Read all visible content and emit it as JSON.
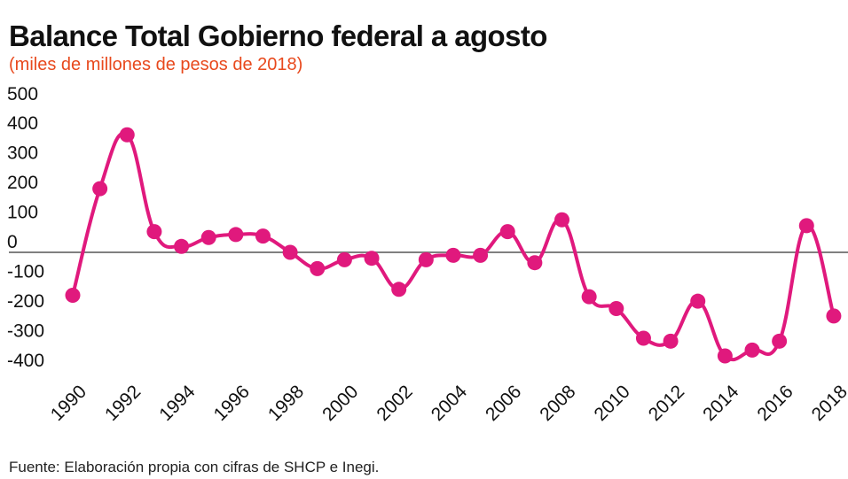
{
  "colors": {
    "series": "#e0197d",
    "zero_line": "#808080",
    "subtitle": "#e8491d"
  },
  "chart_data": {
    "type": "line",
    "title": "Balance Total Gobierno federal a agosto",
    "subtitle": "(miles de millones de pesos de 2018)",
    "source": "Fuente: Elaboración propia con cifras de SHCP e Inegi.",
    "ylim": [
      -400,
      500
    ],
    "yticks": [
      "500",
      "400",
      "300",
      "200",
      "100",
      "0",
      "-100",
      "-200",
      "-300",
      "-400"
    ],
    "xticks": [
      "1990",
      "1992",
      "1994",
      "1996",
      "1998",
      "2000",
      "2002",
      "2004",
      "2006",
      "2008",
      "2010",
      "2012",
      "2014",
      "2016",
      "2018"
    ],
    "grid": false,
    "x": [
      1990,
      1991,
      1992,
      1993,
      1994,
      1995,
      1996,
      1997,
      1998,
      1999,
      2000,
      2001,
      2002,
      2003,
      2004,
      2005,
      2006,
      2007,
      2008,
      2009,
      2010,
      2011,
      2012,
      2013,
      2014,
      2015,
      2016,
      2017,
      2018
    ],
    "series": [
      {
        "values": [
          -145,
          215,
          397,
          70,
          20,
          50,
          60,
          55,
          0,
          -55,
          -25,
          -20,
          -125,
          -25,
          -10,
          -10,
          70,
          -35,
          110,
          -150,
          -190,
          -290,
          -300,
          -165,
          -350,
          -330,
          -300,
          90,
          -215
        ]
      }
    ]
  }
}
